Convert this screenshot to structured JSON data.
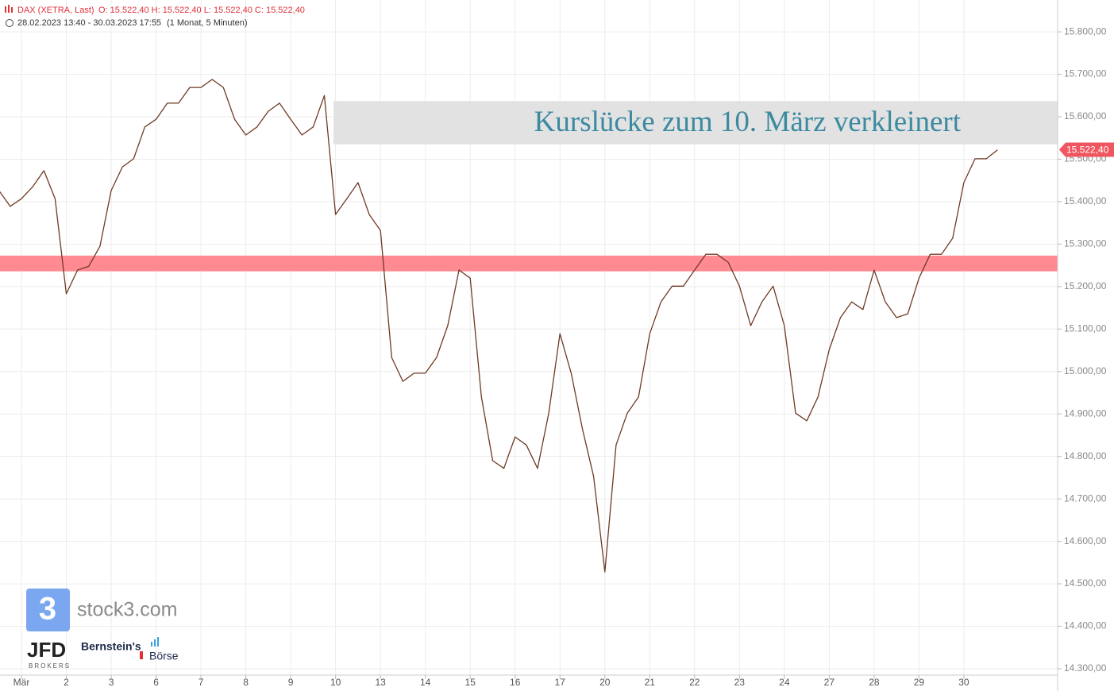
{
  "chart_data": {
    "type": "line",
    "title": "DAX (XETRA, Last)",
    "quote": "O: 15.522,40  H: 15.522,40  L: 15.522,40  C: 15.522,40",
    "subtitle": "28.02.2023 13:40 - 30.03.2023 17:55",
    "period": "(1 Monat, 5 Minuten)",
    "categories": [
      null,
      null,
      "Mär",
      null,
      null,
      null,
      "2",
      null,
      null,
      null,
      "3",
      null,
      null,
      null,
      "6",
      null,
      null,
      null,
      "7",
      null,
      null,
      null,
      "8",
      null,
      null,
      null,
      "9",
      null,
      null,
      null,
      "10",
      null,
      null,
      null,
      "13",
      null,
      null,
      null,
      "14",
      null,
      null,
      null,
      "15",
      null,
      null,
      null,
      "16",
      null,
      null,
      null,
      "17",
      null,
      null,
      null,
      "20",
      null,
      null,
      null,
      "21",
      null,
      null,
      null,
      "22",
      null,
      null,
      null,
      "23",
      null,
      null,
      null,
      "24",
      null,
      null,
      null,
      "27",
      null,
      null,
      null,
      "28",
      null,
      null,
      null,
      "29",
      null,
      null,
      null,
      "30",
      null,
      null,
      null
    ],
    "series": [
      {
        "name": "DAX",
        "color": "#6e3a22",
        "values": [
          15426,
          15389,
          15407,
          15435,
          15473,
          15407,
          15183,
          15239,
          15248,
          15295,
          15426,
          15482,
          15501,
          15576,
          15594,
          15632,
          15632,
          15669,
          15669,
          15688,
          15669,
          15594,
          15557,
          15576,
          15613,
          15632,
          15594,
          15557,
          15576,
          15650,
          15370,
          15407,
          15445,
          15370,
          15332,
          15033,
          14977,
          14996,
          14996,
          15033,
          15108,
          15239,
          15220,
          14940,
          14790,
          14772,
          14846,
          14827,
          14772,
          14902,
          15089,
          14996,
          14865,
          14753,
          14528,
          14827,
          14902,
          14940,
          15089,
          15164,
          15201,
          15201,
          15239,
          15276,
          15276,
          15257,
          15201,
          15108,
          15164,
          15201,
          15108,
          14902,
          14884,
          14940,
          15052,
          15127,
          15164,
          15146,
          15239,
          15164,
          15127,
          15136,
          15220,
          15276,
          15276,
          15314,
          15445,
          15501,
          15501,
          15522
        ]
      }
    ],
    "ylim": [
      14285,
      15875
    ],
    "yticks": [
      {
        "value": 14300,
        "label": "14.300,00"
      },
      {
        "value": 14400,
        "label": "14.400,00"
      },
      {
        "value": 14500,
        "label": "14.500,00"
      },
      {
        "value": 14600,
        "label": "14.600,00"
      },
      {
        "value": 14700,
        "label": "14.700,00"
      },
      {
        "value": 14800,
        "label": "14.800,00"
      },
      {
        "value": 14900,
        "label": "14.900,00"
      },
      {
        "value": 15000,
        "label": "15.000,00"
      },
      {
        "value": 15100,
        "label": "15.100,00"
      },
      {
        "value": 15200,
        "label": "15.200,00"
      },
      {
        "value": 15300,
        "label": "15.300,00"
      },
      {
        "value": 15400,
        "label": "15.400,00"
      },
      {
        "value": 15500,
        "label": "15.500,00"
      },
      {
        "value": 15600,
        "label": "15.600,00"
      },
      {
        "value": 15700,
        "label": "15.700,00"
      },
      {
        "value": 15800,
        "label": "15.800,00"
      }
    ],
    "grid": true,
    "last_price": {
      "value": 15522.4,
      "label": "15.522,40",
      "color": "#f0565f"
    },
    "zones": [
      {
        "from": 15535,
        "to": 15637,
        "color": "#e2e2e2",
        "label": "Kurslücke zum 10. März verkleinert"
      },
      {
        "from": 15236,
        "to": 15273,
        "color": "#ff8a92"
      }
    ]
  },
  "logos": {
    "stock3": "stock3.com",
    "jfd": "JFD",
    "jfd_sub": "BROKERS",
    "bernstein": "Bernstein's",
    "boerse": "Börse"
  }
}
